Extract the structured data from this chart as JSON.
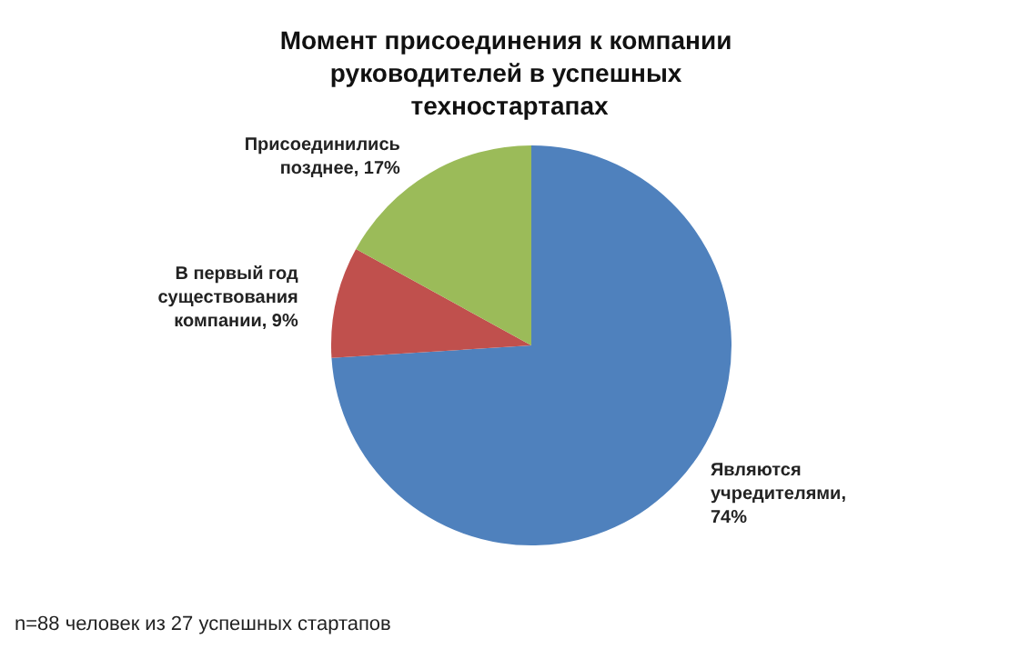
{
  "chart_data": {
    "type": "pie",
    "title": "Момент присоединения к компании руководителей в успешных техностартапах",
    "categories": [
      "Являются учредителями",
      "В первый год существования компании",
      "Присоединились позднее"
    ],
    "values": [
      74,
      9,
      17
    ],
    "value_labels": [
      ", 74%",
      ", 9%",
      ", 17%"
    ],
    "colors": [
      "#4f81bd",
      "#c0504d",
      "#9bbb59"
    ],
    "legend": false,
    "annotations": [
      "n=88 человек из 27 успешных стартапов"
    ]
  }
}
